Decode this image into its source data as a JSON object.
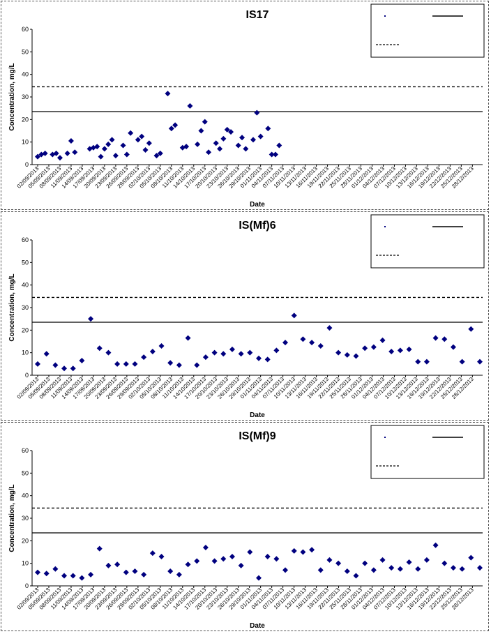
{
  "chart_data": [
    {
      "type": "scatter",
      "title": "IS17",
      "xlabel": "Date",
      "ylabel": "Concentration, mg/L",
      "ylim": [
        0,
        60
      ],
      "yticks": [
        0,
        10,
        20,
        30,
        40,
        50,
        60
      ],
      "xlim": [
        "2013-09-02",
        "2013-12-30"
      ],
      "xticks": [
        "02/09/2013",
        "05/09/2013",
        "08/09/2013",
        "11/09/2013",
        "14/09/2013",
        "17/09/2013",
        "20/09/2013",
        "23/09/2013",
        "26/09/2013",
        "29/09/2013",
        "02/10/2013",
        "05/10/2013",
        "08/10/2013",
        "11/10/2013",
        "14/10/2013",
        "17/10/2013",
        "20/10/2013",
        "23/10/2013",
        "26/10/2013",
        "29/10/2013",
        "01/11/2013",
        "04/11/2013",
        "07/11/2013",
        "10/11/2013",
        "13/11/2013",
        "16/11/2013",
        "19/11/2013",
        "22/11/2013",
        "25/11/2013",
        "28/11/2013",
        "01/12/2013",
        "04/12/2013",
        "07/12/2013",
        "10/12/2013",
        "13/12/2013",
        "16/12/2013",
        "19/12/2013",
        "22/12/2013",
        "25/12/2013",
        "28/12/2013"
      ],
      "points": [
        [
          "2013-09-02",
          3.5
        ],
        [
          "2013-09-03",
          4.5
        ],
        [
          "2013-09-04",
          5
        ],
        [
          "2013-09-06",
          4.5
        ],
        [
          "2013-09-07",
          5
        ],
        [
          "2013-09-08",
          3
        ],
        [
          "2013-09-10",
          5
        ],
        [
          "2013-09-11",
          10.5
        ],
        [
          "2013-09-12",
          5.5
        ],
        [
          "2013-09-16",
          7
        ],
        [
          "2013-09-17",
          7.5
        ],
        [
          "2013-09-18",
          8
        ],
        [
          "2013-09-19",
          3.5
        ],
        [
          "2013-09-20",
          7
        ],
        [
          "2013-09-21",
          9
        ],
        [
          "2013-09-22",
          11
        ],
        [
          "2013-09-23",
          4
        ],
        [
          "2013-09-25",
          8.5
        ],
        [
          "2013-09-26",
          4.5
        ],
        [
          "2013-09-27",
          14
        ],
        [
          "2013-09-29",
          11
        ],
        [
          "2013-09-30",
          12.5
        ],
        [
          "2013-10-01",
          6.5
        ],
        [
          "2013-10-02",
          9.5
        ],
        [
          "2013-10-04",
          4
        ],
        [
          "2013-10-05",
          5
        ],
        [
          "2013-10-07",
          31.5
        ],
        [
          "2013-10-08",
          16
        ],
        [
          "2013-10-09",
          17.5
        ],
        [
          "2013-10-11",
          7.5
        ],
        [
          "2013-10-12",
          8
        ],
        [
          "2013-10-13",
          26
        ],
        [
          "2013-10-15",
          9
        ],
        [
          "2013-10-16",
          15
        ],
        [
          "2013-10-17",
          19
        ],
        [
          "2013-10-18",
          5.5
        ],
        [
          "2013-10-20",
          9.5
        ],
        [
          "2013-10-21",
          7
        ],
        [
          "2013-10-22",
          11.5
        ],
        [
          "2013-10-23",
          15.5
        ],
        [
          "2013-10-24",
          14.5
        ],
        [
          "2013-10-26",
          8.5
        ],
        [
          "2013-10-27",
          12
        ],
        [
          "2013-10-28",
          7
        ],
        [
          "2013-10-30",
          11
        ],
        [
          "2013-10-31",
          23
        ],
        [
          "2013-11-01",
          12.5
        ],
        [
          "2013-11-03",
          16
        ],
        [
          "2013-11-04",
          4.5
        ],
        [
          "2013-11-05",
          4.5
        ],
        [
          "2013-11-06",
          8.5
        ]
      ],
      "hlines": [
        {
          "value": 34.5,
          "style": "dashed"
        },
        {
          "value": 23.5,
          "style": "solid"
        }
      ],
      "legend_position": "top-right"
    },
    {
      "type": "scatter",
      "title": "IS(Mf)6",
      "xlabel": "Date",
      "ylabel": "Concentration, mg/L",
      "ylim": [
        0,
        60
      ],
      "yticks": [
        0,
        10,
        20,
        30,
        40,
        50,
        60
      ],
      "xticks": [
        "02/09/2013",
        "05/09/2013",
        "08/09/2013",
        "11/09/2013",
        "14/09/2013",
        "17/09/2013",
        "20/09/2013",
        "23/09/2013",
        "26/09/2013",
        "29/09/2013",
        "02/10/2013",
        "05/10/2013",
        "08/10/2013",
        "11/10/2013",
        "14/10/2013",
        "17/10/2013",
        "20/10/2013",
        "23/10/2013",
        "26/10/2013",
        "29/10/2013",
        "01/11/2013",
        "04/11/2013",
        "07/11/2013",
        "10/11/2013",
        "13/11/2013",
        "16/11/2013",
        "19/11/2013",
        "22/11/2013",
        "25/11/2013",
        "28/11/2013",
        "01/12/2013",
        "04/12/2013",
        "07/12/2013",
        "10/12/2013",
        "13/12/2013",
        "16/12/2013",
        "19/12/2013",
        "22/12/2013",
        "25/12/2013",
        "28/12/2013"
      ],
      "points": [
        [
          0,
          5
        ],
        [
          1,
          9.5
        ],
        [
          2,
          4.5
        ],
        [
          3,
          3
        ],
        [
          4,
          3
        ],
        [
          5,
          6.5
        ],
        [
          6,
          25
        ],
        [
          7,
          12
        ],
        [
          8,
          10
        ],
        [
          9,
          5
        ],
        [
          10,
          5
        ],
        [
          11,
          5
        ],
        [
          12,
          8
        ],
        [
          13,
          10.5
        ],
        [
          14,
          13
        ],
        [
          15,
          5.5
        ],
        [
          16,
          4.5
        ],
        [
          17,
          16.5
        ],
        [
          18,
          4.5
        ],
        [
          19,
          8
        ],
        [
          20,
          10
        ],
        [
          21,
          9.5
        ],
        [
          22,
          11.5
        ],
        [
          23,
          9.5
        ],
        [
          24,
          10
        ],
        [
          25,
          7.5
        ],
        [
          26,
          7
        ],
        [
          27,
          11
        ],
        [
          28,
          14.5
        ],
        [
          29,
          26.5
        ],
        [
          30,
          16
        ],
        [
          31,
          14.5
        ],
        [
          32,
          13
        ],
        [
          33,
          21
        ],
        [
          34,
          10
        ],
        [
          35,
          9
        ],
        [
          36,
          8.5
        ],
        [
          37,
          12
        ],
        [
          38,
          12.5
        ],
        [
          39,
          15.5
        ],
        [
          40,
          10.5
        ],
        [
          41,
          11
        ],
        [
          42,
          11.5
        ],
        [
          43,
          6
        ],
        [
          44,
          6
        ],
        [
          45,
          16.5
        ],
        [
          46,
          16
        ],
        [
          47,
          12.5
        ],
        [
          48,
          6
        ],
        [
          49,
          20.5
        ],
        [
          50,
          6
        ]
      ],
      "hlines": [
        {
          "value": 34.5,
          "style": "dashed"
        },
        {
          "value": 23.5,
          "style": "solid"
        }
      ],
      "legend_position": "top-right"
    },
    {
      "type": "scatter",
      "title": "IS(Mf)9",
      "xlabel": "Date",
      "ylabel": "Concentration, mg/L",
      "ylim": [
        0,
        60
      ],
      "yticks": [
        0,
        10,
        20,
        30,
        40,
        50,
        60
      ],
      "xticks": [
        "02/09/2013",
        "05/09/2013",
        "08/09/2013",
        "11/09/2013",
        "14/09/2013",
        "17/09/2013",
        "20/09/2013",
        "23/09/2013",
        "26/09/2013",
        "29/09/2013",
        "02/10/2013",
        "05/10/2013",
        "08/10/2013",
        "11/10/2013",
        "14/10/2013",
        "17/10/2013",
        "20/10/2013",
        "23/10/2013",
        "26/10/2013",
        "29/10/2013",
        "01/11/2013",
        "04/11/2013",
        "07/11/2013",
        "10/11/2013",
        "13/11/2013",
        "16/11/2013",
        "19/11/2013",
        "22/11/2013",
        "25/11/2013",
        "28/11/2013",
        "01/12/2013",
        "04/12/2013",
        "07/12/2013",
        "10/12/2013",
        "13/12/2013",
        "16/12/2013",
        "19/12/2013",
        "22/12/2013",
        "25/12/2013",
        "28/12/2013"
      ],
      "points": [
        [
          0,
          6
        ],
        [
          1,
          5.5
        ],
        [
          2,
          7.5
        ],
        [
          3,
          4.5
        ],
        [
          4,
          4.5
        ],
        [
          5,
          3.5
        ],
        [
          6,
          5
        ],
        [
          7,
          16.5
        ],
        [
          8,
          9
        ],
        [
          9,
          9.5
        ],
        [
          10,
          6
        ],
        [
          11,
          6.5
        ],
        [
          12,
          5
        ],
        [
          13,
          14.5
        ],
        [
          14,
          13
        ],
        [
          15,
          6.5
        ],
        [
          16,
          5
        ],
        [
          17,
          9.5
        ],
        [
          18,
          11
        ],
        [
          19,
          17
        ],
        [
          20,
          11
        ],
        [
          21,
          12
        ],
        [
          22,
          13
        ],
        [
          23,
          9
        ],
        [
          24,
          15
        ],
        [
          25,
          3.5
        ],
        [
          26,
          13
        ],
        [
          27,
          12
        ],
        [
          28,
          7
        ],
        [
          29,
          15.5
        ],
        [
          30,
          15
        ],
        [
          31,
          16
        ],
        [
          32,
          7
        ],
        [
          33,
          11.5
        ],
        [
          34,
          10
        ],
        [
          35,
          6.5
        ],
        [
          36,
          4.5
        ],
        [
          37,
          10
        ],
        [
          38,
          7
        ],
        [
          39,
          11.5
        ],
        [
          40,
          8
        ],
        [
          41,
          7.5
        ],
        [
          42,
          10.5
        ],
        [
          43,
          7.5
        ],
        [
          44,
          11.5
        ],
        [
          45,
          18
        ],
        [
          46,
          10
        ],
        [
          47,
          8
        ],
        [
          48,
          7.5
        ],
        [
          49,
          12.5
        ],
        [
          50,
          8
        ]
      ],
      "hlines": [
        {
          "value": 34.5,
          "style": "dashed"
        },
        {
          "value": 23.5,
          "style": "solid"
        }
      ],
      "legend_position": "top-right"
    }
  ],
  "colors": {
    "marker": "#00007F",
    "line": "#000000",
    "background": "#FFFFFF"
  }
}
